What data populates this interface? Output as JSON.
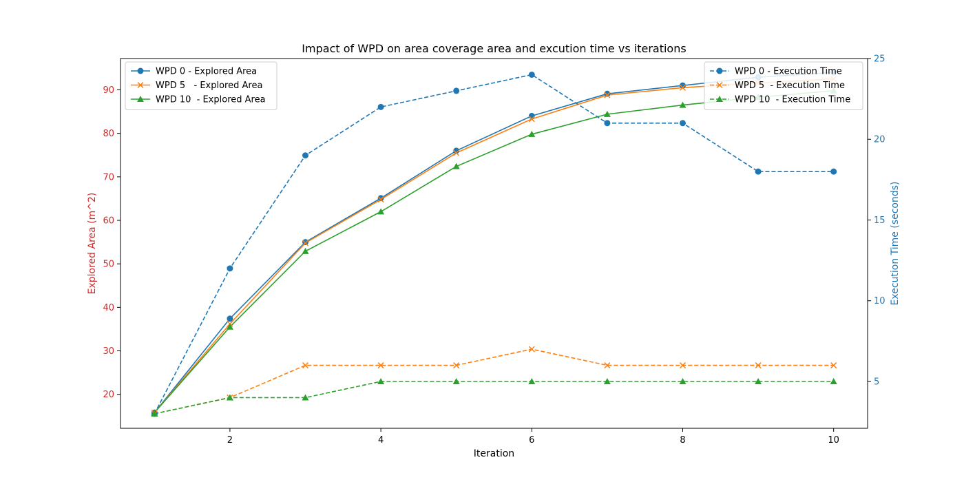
{
  "chart_data": {
    "type": "line",
    "title": "Impact of WPD on area coverage area and excution time vs iterations",
    "xlabel": "Iteration",
    "ylabel_left": "Explored Area (m^2)",
    "ylabel_right": "Execution Time (seconds)",
    "x": [
      1,
      2,
      3,
      4,
      5,
      6,
      7,
      8,
      9,
      10
    ],
    "xlim": [
      0.55,
      10.45
    ],
    "ylim_left": [
      12.2,
      97.2
    ],
    "ylim_right": [
      2.1,
      25.0
    ],
    "xticks": [
      2,
      4,
      6,
      8,
      10
    ],
    "yticks_left": [
      20,
      30,
      40,
      50,
      60,
      70,
      80,
      90
    ],
    "yticks_right": [
      5,
      10,
      15,
      20,
      25
    ],
    "colors": {
      "left_axis": "#d62728",
      "right_axis": "#1f77b4",
      "wpd0": "#1f77b4",
      "wpd5": "#ff7f0e",
      "wpd10": "#2ca02c"
    },
    "legend_left_placement": "upper-left",
    "legend_right_placement": "upper-right",
    "series": [
      {
        "name": "WPD 0 - Explored Area",
        "axis": "left",
        "style": "solid",
        "marker": "circle",
        "color": "#1f77b4",
        "values": [
          15.8,
          37.4,
          55.0,
          65.1,
          76.0,
          84.0,
          89.1,
          91.0,
          92.9,
          94.0
        ]
      },
      {
        "name": "WPD 5   - Explored Area",
        "axis": "left",
        "style": "solid",
        "marker": "x",
        "color": "#ff7f0e",
        "values": [
          15.8,
          36.2,
          54.8,
          64.8,
          75.5,
          83.3,
          88.8,
          90.5,
          91.6,
          92.5
        ]
      },
      {
        "name": "WPD 10  - Explored Area",
        "axis": "left",
        "style": "solid",
        "marker": "triangle",
        "color": "#2ca02c",
        "values": [
          15.8,
          35.5,
          52.9,
          62.0,
          72.4,
          79.8,
          84.4,
          86.5,
          88.3,
          89.8
        ]
      },
      {
        "name": "WPD 0 - Execution Time",
        "axis": "right",
        "style": "dashed",
        "marker": "circle",
        "color": "#1f77b4",
        "values": [
          3,
          12,
          19,
          22,
          23,
          24,
          21,
          21,
          18,
          18
        ]
      },
      {
        "name": "WPD 5  - Execution Time",
        "axis": "right",
        "style": "dashed",
        "marker": "x",
        "color": "#ff7f0e",
        "values": [
          3,
          4,
          6,
          6,
          6,
          7,
          6,
          6,
          6,
          6
        ]
      },
      {
        "name": "WPD 10  - Execution Time",
        "axis": "right",
        "style": "dashed",
        "marker": "triangle",
        "color": "#2ca02c",
        "values": [
          3,
          4,
          4,
          5,
          5,
          5,
          5,
          5,
          5,
          5
        ]
      }
    ]
  }
}
